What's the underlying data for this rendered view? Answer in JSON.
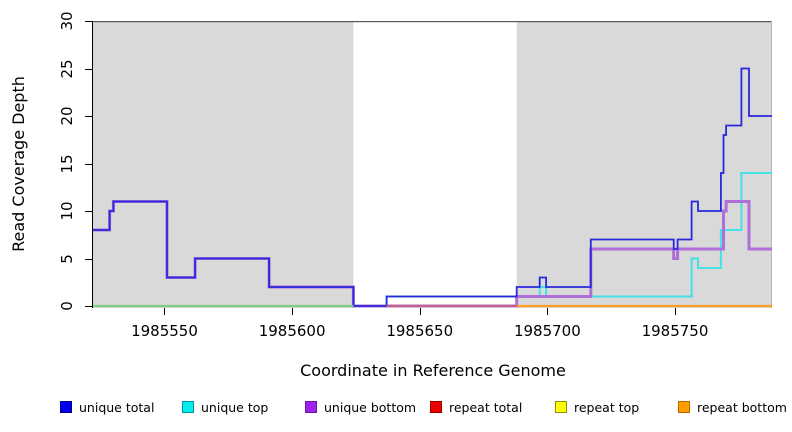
{
  "chart_data": {
    "type": "line",
    "line_style": "step-after",
    "title": "",
    "xlabel": "Coordinate in Reference Genome",
    "ylabel": "Read Coverage Depth",
    "xlim": [
      1985522,
      1985788
    ],
    "ylim": [
      0,
      30
    ],
    "x_ticks": [
      1985550,
      1985600,
      1985650,
      1985700,
      1985750
    ],
    "y_ticks": [
      0,
      5,
      10,
      15,
      20,
      25,
      30
    ],
    "grid": false,
    "plot_background": "#d9d9d9",
    "top_border_color": "#565656",
    "white_band": {
      "x0": 1985624,
      "x1": 1985688,
      "color": "#ffffff"
    },
    "series": [
      {
        "name": "repeat total",
        "color": "#dd0000",
        "width": 2,
        "points": [
          [
            1985522,
            0
          ],
          [
            1985788,
            0
          ]
        ]
      },
      {
        "name": "repeat top",
        "color": "#eeee00",
        "width": 2,
        "points": [
          [
            1985522,
            0
          ],
          [
            1985788,
            0
          ]
        ]
      },
      {
        "name": "repeat bottom",
        "color": "#ff9d26",
        "width": 2,
        "points": [
          [
            1985522,
            0
          ],
          [
            1985788,
            0
          ]
        ]
      },
      {
        "name": "unique top",
        "color": "#45e0e5",
        "width": 2,
        "points": [
          [
            1985522,
            0
          ],
          [
            1985637,
            1
          ],
          [
            1985697,
            2
          ],
          [
            1985699.5,
            1
          ],
          [
            1985756.5,
            5
          ],
          [
            1985759,
            4
          ],
          [
            1985768,
            8
          ],
          [
            1985776,
            14
          ],
          [
            1985788,
            14
          ]
        ]
      },
      {
        "name": "unique bottom",
        "color": "#b06fd8",
        "width": 3,
        "points": [
          [
            1985522,
            8
          ],
          [
            1985528.5,
            10
          ],
          [
            1985530,
            11
          ],
          [
            1985551,
            3
          ],
          [
            1985562,
            5
          ],
          [
            1985591,
            2
          ],
          [
            1985624,
            0
          ],
          [
            1985688,
            1
          ],
          [
            1985717,
            6
          ],
          [
            1985749.5,
            5
          ],
          [
            1985751,
            6
          ],
          [
            1985769,
            10
          ],
          [
            1985770,
            11
          ],
          [
            1985779,
            6
          ],
          [
            1985788,
            6
          ]
        ]
      },
      {
        "name": "unique total",
        "color": "#2828dc",
        "width": 1.8,
        "points": [
          [
            1985522,
            8
          ],
          [
            1985528.5,
            10
          ],
          [
            1985530,
            11
          ],
          [
            1985551,
            3
          ],
          [
            1985562,
            5
          ],
          [
            1985591,
            2
          ],
          [
            1985624,
            0
          ],
          [
            1985637,
            1
          ],
          [
            1985688,
            2
          ],
          [
            1985697,
            3
          ],
          [
            1985699.5,
            2
          ],
          [
            1985717,
            7
          ],
          [
            1985749.5,
            6
          ],
          [
            1985751,
            7
          ],
          [
            1985756.5,
            11
          ],
          [
            1985759,
            10
          ],
          [
            1985768,
            14
          ],
          [
            1985769,
            18
          ],
          [
            1985770,
            19
          ],
          [
            1985776,
            25
          ],
          [
            1985779,
            20
          ],
          [
            1985788,
            20
          ]
        ]
      }
    ],
    "zero_line_overlaps": [
      {
        "x0": 1985522,
        "x1": 1985624,
        "color": "#7fcb7f",
        "note": "unique-top over repeat lines at 0"
      },
      {
        "x0": 1985637,
        "x1": 1985688,
        "color": "#c2608a",
        "note": "unique-bottom over repeat lines at 0"
      },
      {
        "x0": 1985688,
        "x1": 1985788,
        "color": "#ff9d26",
        "note": "repeat bottom visible at 0"
      }
    ]
  },
  "legend": {
    "items": [
      {
        "label": "unique total",
        "fill": "#0000ee",
        "border": "#000090"
      },
      {
        "label": "unique top",
        "fill": "#00eeee",
        "border": "#009598"
      },
      {
        "label": "unique bottom",
        "fill": "#a020f0",
        "border": "#6e16a8"
      },
      {
        "label": "repeat total",
        "fill": "#ee0000",
        "border": "#990000"
      },
      {
        "label": "repeat top",
        "fill": "#ffff00",
        "border": "#8f8f00"
      },
      {
        "label": "repeat bottom",
        "fill": "#ff9d00",
        "border": "#b36b00"
      }
    ]
  }
}
